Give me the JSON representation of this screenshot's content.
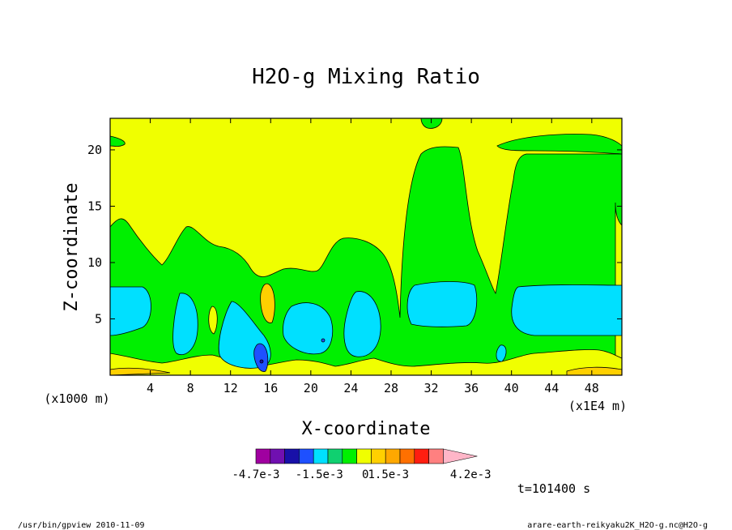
{
  "chart_data": {
    "type": "heatmap",
    "title": "H2O-g Mixing Ratio",
    "xlabel": "X-coordinate",
    "ylabel": "Z-coordinate",
    "x_unit": "(x1000 m)",
    "x_scale": "(x1E4 m)",
    "xlim": [
      0,
      51
    ],
    "ylim": [
      0,
      22.8
    ],
    "xticks": [
      4,
      8,
      12,
      16,
      20,
      24,
      28,
      32,
      36,
      40,
      44,
      48
    ],
    "yticks": [
      5,
      10,
      15,
      20
    ],
    "colorbar": {
      "colors": [
        "#a000a0",
        "#7010b0",
        "#1810a8",
        "#1e50ff",
        "#00e0ff",
        "#10d070",
        "#00f000",
        "#f0ff00",
        "#ffd000",
        "#ffa800",
        "#ff7000",
        "#ff1e10",
        "#ff8080",
        "#ffb6c8"
      ],
      "labels": [
        "-4.7e-3",
        "-1.5e-3",
        "0",
        "1.5e-3",
        "4.2e-3"
      ],
      "label_positions": [
        0,
        3,
        5,
        6,
        10
      ]
    },
    "time_label": "t=101400 s",
    "regions": [
      {
        "level": "positive-low",
        "color": "#f0ff00",
        "note": "background"
      },
      {
        "level": "slightly-negative",
        "color": "#00f000"
      },
      {
        "level": "negative",
        "color": "#00e0ff"
      },
      {
        "level": "strong-negative",
        "color": "#1e50ff",
        "center": [
          15.2,
          1.3
        ]
      },
      {
        "level": "positive-mid",
        "color": "#ffd000",
        "center": [
          15.8,
          6.3
        ]
      }
    ]
  },
  "footer": {
    "left": "/usr/bin/gpview  2010-11-09",
    "right": "arare-earth-reikyaku2K_H2O-g.nc@H2O-g"
  }
}
